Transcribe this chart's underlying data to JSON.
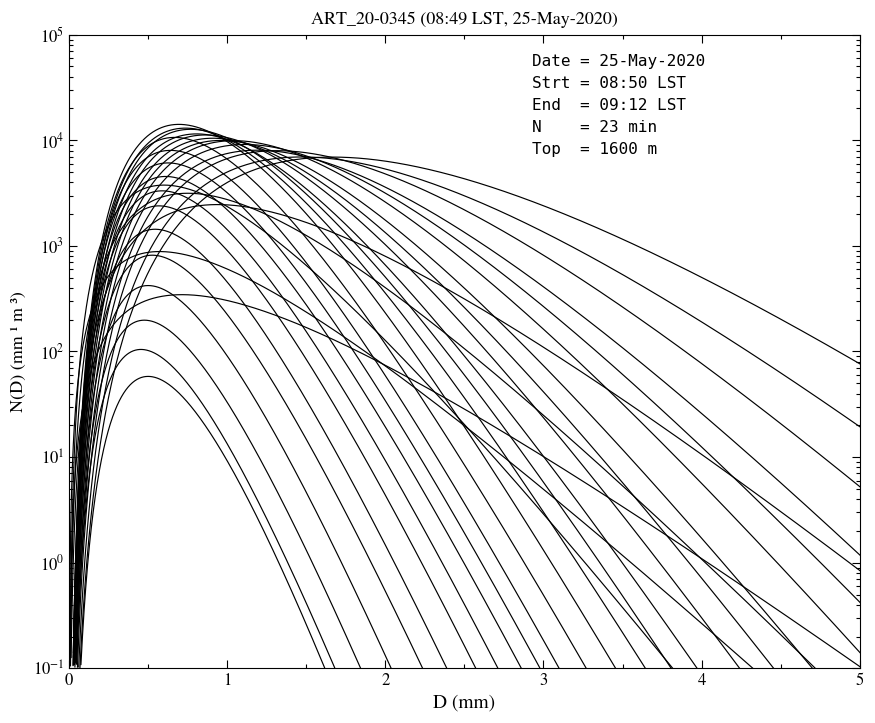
{
  "title": "ART_20-0345 (08:49 LST, 25-May-2020)",
  "xlabel": "D (mm)",
  "ylabel": "N(D) (mm⁻¹ m⁻³)",
  "xlim": [
    0,
    5
  ],
  "ylim_log": [
    -1,
    5
  ],
  "annotation_lines": [
    "Date = 25-May-2020",
    "Strt = 08:50 LST",
    "End  = 09:12 LST",
    "N    = 23 min",
    "Top  = 1600 m"
  ],
  "color": "black",
  "linewidth": 0.85,
  "curve_params": [
    [
      800000.0,
      5,
      11.0
    ],
    [
      1200000.0,
      5,
      10.5
    ],
    [
      2000000.0,
      5,
      10.0
    ],
    [
      3000000.0,
      5,
      9.5
    ],
    [
      4500000.0,
      5,
      9.2
    ],
    [
      6000000.0,
      5,
      8.8
    ],
    [
      7000000.0,
      5,
      8.5
    ],
    [
      8000000.0,
      5,
      8.2
    ],
    [
      9500000.0,
      5,
      8.0
    ],
    [
      11000000.0,
      5,
      7.8
    ],
    [
      12000000.0,
      5,
      7.5
    ],
    [
      13000000.0,
      5,
      7.2
    ],
    [
      9000000.0,
      5,
      6.8
    ],
    [
      7000000.0,
      5,
      6.5
    ],
    [
      5000000.0,
      5,
      6.2
    ],
    [
      3500000.0,
      5,
      5.8
    ],
    [
      2500000.0,
      5,
      5.5
    ],
    [
      1800000.0,
      5,
      5.2
    ],
    [
      1200000.0,
      5,
      4.8
    ],
    [
      800000.0,
      5,
      4.5
    ],
    [
      500000.0,
      5,
      4.2
    ],
    [
      300000.0,
      5,
      3.8
    ],
    [
      150000.0,
      5,
      3.4
    ],
    [
      80000.0,
      5,
      3.0
    ],
    [
      350000.0,
      3,
      5.0
    ],
    [
      150000.0,
      3,
      4.0
    ],
    [
      60000.0,
      3,
      3.2
    ],
    [
      20000.0,
      2,
      3.5
    ],
    [
      5000.0,
      2,
      2.8
    ],
    [
      1500000.0,
      6,
      12.0
    ]
  ]
}
